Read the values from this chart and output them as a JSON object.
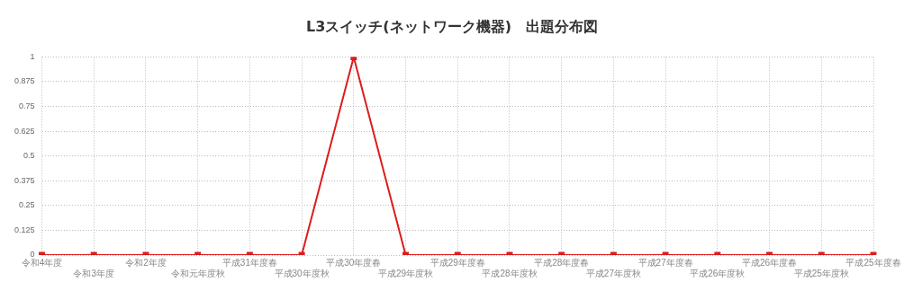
{
  "chart_data": {
    "type": "line",
    "title": "L3スイッチ(ネットワーク機器)　出題分布図",
    "categories": [
      "令和4年度",
      "令和3年度",
      "令和2年度",
      "令和元年度秋",
      "平成31年度春",
      "平成30年度秋",
      "平成30年度春",
      "平成29年度秋",
      "平成29年度春",
      "平成28年度秋",
      "平成28年度春",
      "平成27年度秋",
      "平成27年度春",
      "平成26年度秋",
      "平成26年度春",
      "平成25年度秋",
      "平成25年度春"
    ],
    "series": [
      {
        "color": "#dd1c1c",
        "values": [
          0,
          0,
          0,
          0,
          0,
          0,
          1,
          0,
          0,
          0,
          0,
          0,
          0,
          0,
          0,
          0,
          0
        ]
      }
    ],
    "ylim": [
      0,
      1
    ],
    "yticks": [
      0,
      0.125,
      0.25,
      0.375,
      0.5,
      0.625,
      0.75,
      0.875,
      1
    ],
    "grid": true,
    "legend": false,
    "marker": "square",
    "line_style": "solid"
  }
}
